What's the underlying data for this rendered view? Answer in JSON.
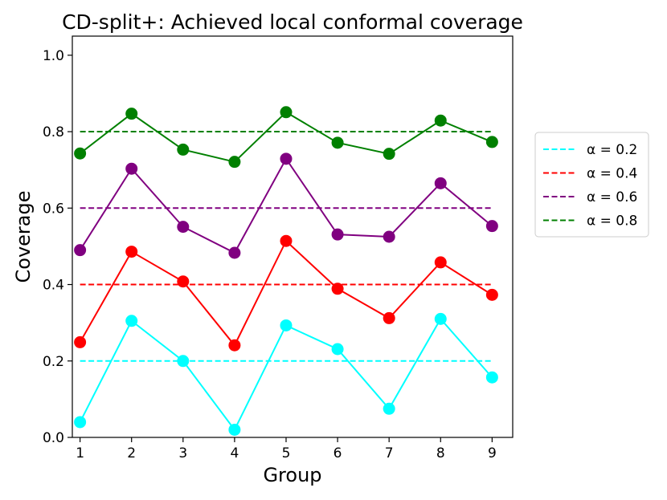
{
  "chart_data": {
    "type": "line",
    "title": "CD-split+: Achieved local conformal coverage",
    "xlabel": "Group",
    "ylabel": "Coverage",
    "x": [
      1,
      2,
      3,
      4,
      5,
      6,
      7,
      8,
      9
    ],
    "xticks": [
      "1",
      "2",
      "3",
      "4",
      "5",
      "6",
      "7",
      "8",
      "9"
    ],
    "xlim": [
      0.85,
      9.4
    ],
    "ylim": [
      0,
      1.05
    ],
    "yticks": [
      "0.0",
      "0.2",
      "0.4",
      "0.6",
      "0.8",
      "1.0"
    ],
    "grid": false,
    "legend_position": "right-outside",
    "series": [
      {
        "name": "α = 0.2",
        "color": "#00ffff",
        "target": 0.2,
        "values": [
          0.04,
          0.305,
          0.2,
          0.02,
          0.293,
          0.231,
          0.075,
          0.31,
          0.157
        ]
      },
      {
        "name": "α = 0.4",
        "color": "#ff0000",
        "target": 0.4,
        "values": [
          0.249,
          0.486,
          0.408,
          0.241,
          0.514,
          0.389,
          0.312,
          0.458,
          0.373
        ]
      },
      {
        "name": "α = 0.6",
        "color": "#800080",
        "target": 0.6,
        "values": [
          0.49,
          0.703,
          0.551,
          0.483,
          0.729,
          0.531,
          0.525,
          0.665,
          0.553
        ]
      },
      {
        "name": "α = 0.8",
        "color": "#008000",
        "target": 0.8,
        "values": [
          0.743,
          0.847,
          0.753,
          0.721,
          0.851,
          0.771,
          0.742,
          0.829,
          0.773
        ]
      }
    ]
  }
}
